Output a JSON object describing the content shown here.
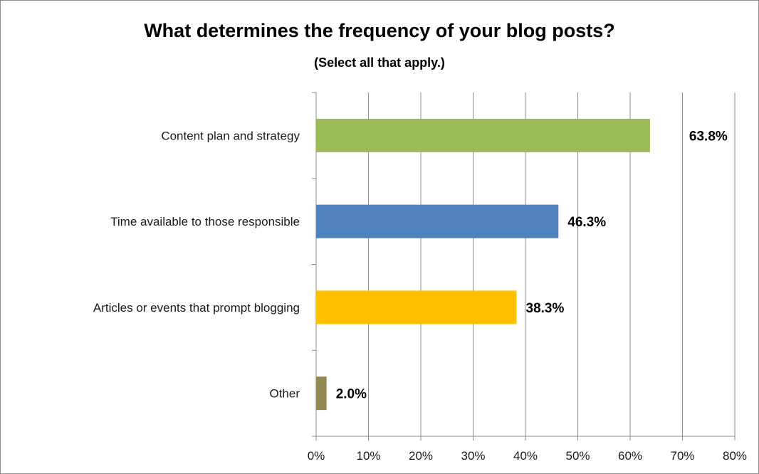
{
  "chart_data": {
    "type": "bar",
    "orientation": "horizontal",
    "title": "What determines the frequency of your blog posts?",
    "subtitle": "(Select all that apply.)",
    "categories": [
      "Content plan and strategy",
      "Time available to those responsible",
      "Articles or events that prompt blogging",
      "Other"
    ],
    "values": [
      63.8,
      46.3,
      38.3,
      2.0
    ],
    "value_labels": [
      "63.8%",
      "46.3%",
      "38.3%",
      "2.0%"
    ],
    "colors": [
      "#9bbb59",
      "#4f81bd",
      "#ffc000",
      "#948a54"
    ],
    "xlim": [
      0,
      80
    ],
    "x_ticks": [
      0,
      10,
      20,
      30,
      40,
      50,
      60,
      70,
      80
    ],
    "x_tick_labels": [
      "0%",
      "10%",
      "20%",
      "30%",
      "40%",
      "50%",
      "60%",
      "70%",
      "80%"
    ],
    "grid": true,
    "legend": "none"
  }
}
